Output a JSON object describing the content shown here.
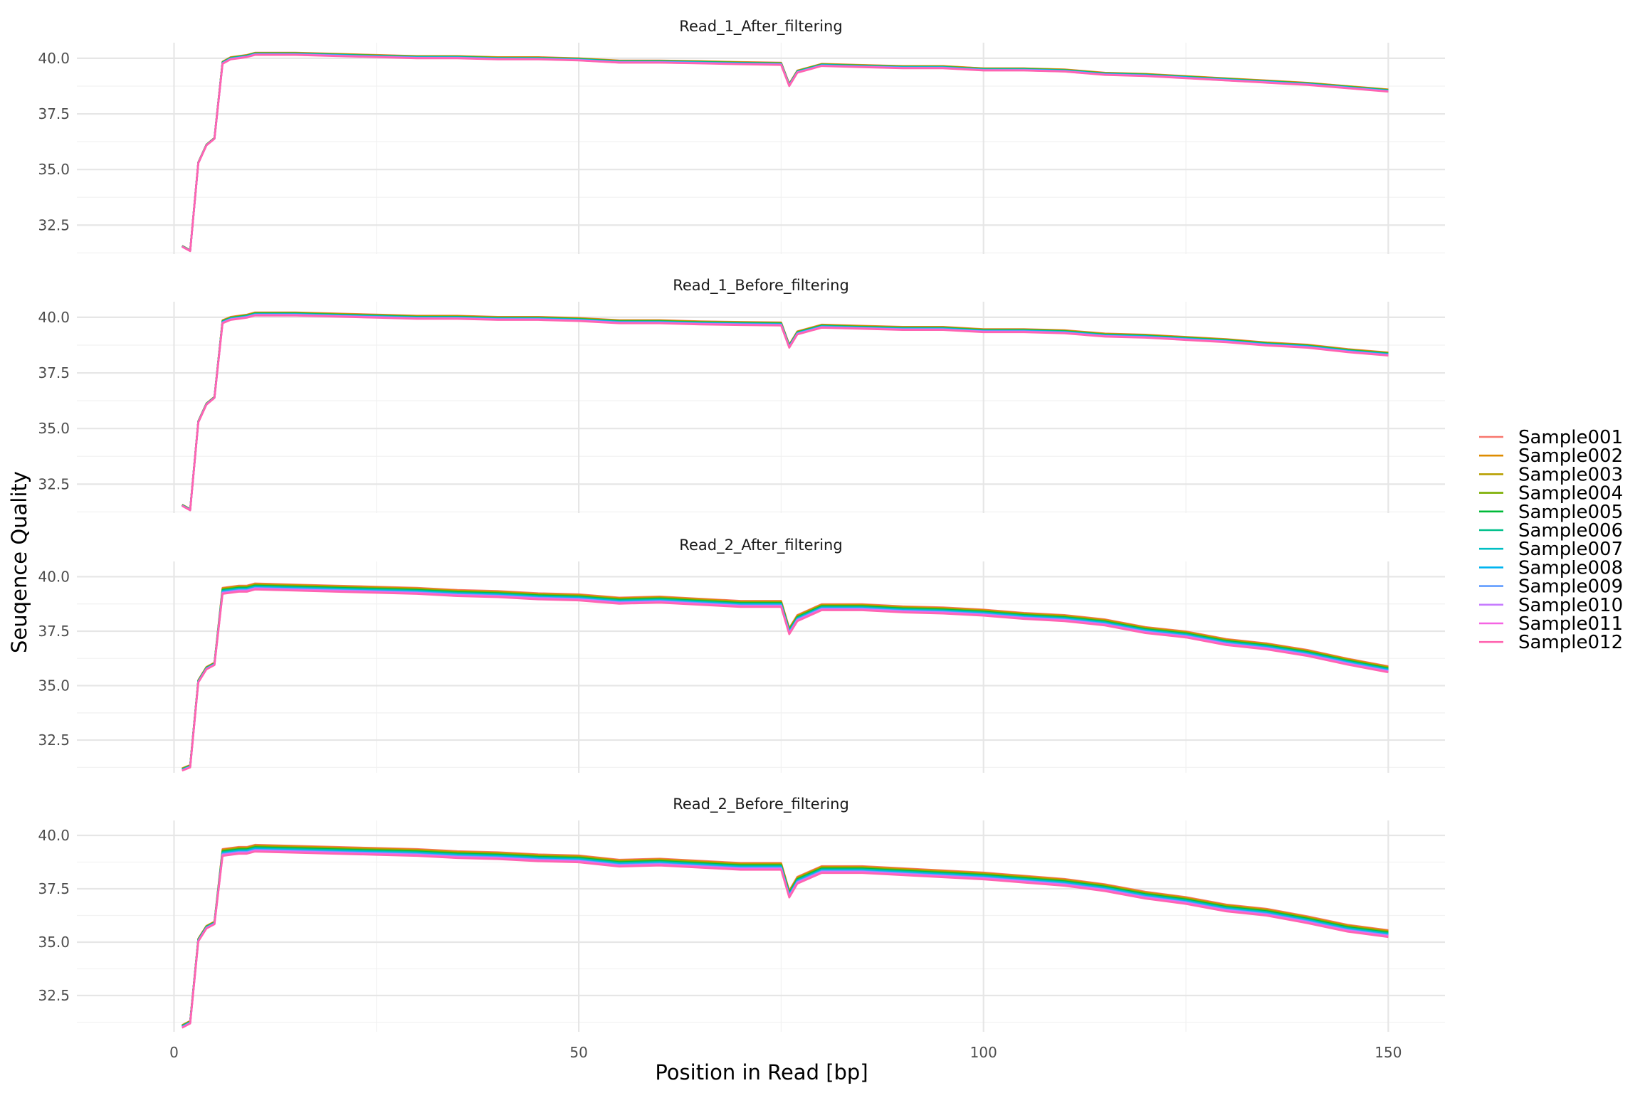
{
  "chart_data": {
    "type": "line",
    "xlabel": "Position in Read [bp]",
    "ylabel": "Seuqence Quality",
    "xlim": [
      -12,
      157
    ],
    "x_ticks": [
      0,
      50,
      100,
      150
    ],
    "x_tick_labels": [
      "0",
      "50",
      "100",
      "150"
    ],
    "y_ticks": [
      32.5,
      35.0,
      37.5,
      40.0
    ],
    "y_tick_labels": [
      "32.5",
      "35.0",
      "37.5",
      "40.0"
    ],
    "grid": true,
    "legend_position": "right",
    "legend": [
      "Sample001",
      "Sample002",
      "Sample003",
      "Sample004",
      "Sample005",
      "Sample006",
      "Sample007",
      "Sample008",
      "Sample009",
      "Sample010",
      "Sample011",
      "Sample012"
    ],
    "colors": [
      "#F8766D",
      "#DE8C00",
      "#B79F00",
      "#7CAE00",
      "#00BA38",
      "#00C08B",
      "#00BFC4",
      "#00B4F0",
      "#619CFF",
      "#C77CFF",
      "#F564E3",
      "#FF64B0"
    ],
    "x": [
      1,
      2,
      3,
      4,
      5,
      6,
      7,
      8,
      9,
      10,
      15,
      20,
      25,
      30,
      35,
      40,
      45,
      50,
      55,
      60,
      65,
      70,
      75,
      76,
      77,
      80,
      85,
      90,
      95,
      100,
      105,
      110,
      115,
      120,
      125,
      130,
      135,
      140,
      145,
      150
    ],
    "facets": [
      {
        "title": "Read_1_After_filtering",
        "ylim": [
          31.2,
          40.7
        ],
        "base": [
          31.55,
          31.35,
          35.3,
          36.1,
          36.4,
          39.8,
          40.0,
          40.05,
          40.1,
          40.2,
          40.2,
          40.15,
          40.1,
          40.05,
          40.05,
          40.0,
          40.0,
          39.95,
          39.85,
          39.85,
          39.82,
          39.78,
          39.75,
          38.8,
          39.4,
          39.7,
          39.65,
          39.6,
          39.6,
          39.5,
          39.5,
          39.45,
          39.3,
          39.25,
          39.15,
          39.05,
          38.95,
          38.85,
          38.7,
          38.55
        ],
        "spread": 0.05
      },
      {
        "title": "Read_1_Before_filtering",
        "ylim": [
          31.2,
          40.7
        ],
        "base": [
          31.55,
          31.35,
          35.3,
          36.1,
          36.4,
          39.8,
          39.95,
          40.0,
          40.05,
          40.15,
          40.15,
          40.1,
          40.05,
          40.0,
          40.0,
          39.95,
          39.95,
          39.9,
          39.8,
          39.8,
          39.75,
          39.72,
          39.7,
          38.7,
          39.3,
          39.6,
          39.55,
          39.5,
          39.5,
          39.4,
          39.4,
          39.35,
          39.2,
          39.15,
          39.05,
          38.95,
          38.8,
          38.7,
          38.5,
          38.35
        ],
        "spread": 0.07
      },
      {
        "title": "Read_2_After_filtering",
        "ylim": [
          31.0,
          40.7
        ],
        "base": [
          31.15,
          31.3,
          35.2,
          35.8,
          36.0,
          39.35,
          39.4,
          39.45,
          39.45,
          39.55,
          39.5,
          39.45,
          39.4,
          39.35,
          39.25,
          39.2,
          39.1,
          39.05,
          38.9,
          38.95,
          38.85,
          38.75,
          38.75,
          37.5,
          38.1,
          38.6,
          38.6,
          38.5,
          38.45,
          38.35,
          38.2,
          38.1,
          37.9,
          37.55,
          37.35,
          37.0,
          36.8,
          36.5,
          36.1,
          35.75
        ],
        "spread": 0.14
      },
      {
        "title": "Read_2_Before_filtering",
        "ylim": [
          30.8,
          40.7
        ],
        "base": [
          31.05,
          31.25,
          35.1,
          35.7,
          35.9,
          39.2,
          39.25,
          39.3,
          39.3,
          39.4,
          39.35,
          39.3,
          39.25,
          39.2,
          39.1,
          39.05,
          38.95,
          38.9,
          38.7,
          38.75,
          38.65,
          38.55,
          38.55,
          37.25,
          37.9,
          38.4,
          38.4,
          38.3,
          38.2,
          38.1,
          37.95,
          37.8,
          37.55,
          37.2,
          36.95,
          36.6,
          36.4,
          36.05,
          35.65,
          35.4
        ],
        "spread": 0.16
      }
    ]
  }
}
